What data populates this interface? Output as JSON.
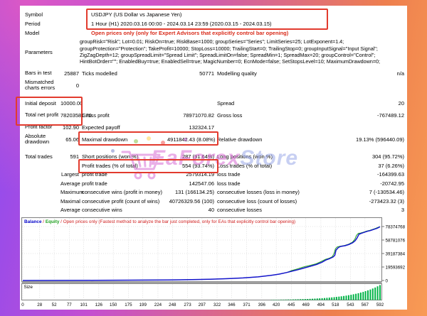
{
  "table": {
    "header_rows": [
      {
        "label": "Symbol",
        "value": "USDJPY (US Dollar vs Japanese Yen)",
        "type": "wide"
      },
      {
        "label": "Period",
        "value": "1 Hour (H1) 2020.03.16 00:00 - 2024.03.14 23:59 (2020.03.15 - 2024.03.15)",
        "type": "wide"
      },
      {
        "label": "Model",
        "value": "Open prices only (only for Expert Advisors that explicitly control bar opening)",
        "type": "wide",
        "cls": "model"
      },
      {
        "label": "Parameters",
        "type": "params",
        "lines": [
          "groupRisk=\"Risk\"; Lot=0.01; RiskOn=true; RiskBase=1000; groupSeries=\"Series\"; LimitSeries=25; LotExponent=1.4;",
          "groupProtection=\"Protection\"; TakeProfit=10000; StopLoss=10000; TrailingStart=0; TrailingStop=0; groupInputSignal=\"Input Signal\";",
          "ZigZagDepth=12; groupSpreadLimit=\"Spread Limit\"; SpreadLimitOn=false; SpreadMin=1; SpreadMax=20; groupControl=\"Control\";",
          "HintBotOrder=\"\"; EnabledBuy=true; EnabledSell=true; MagicNumber=0; EcnMode=false; SetStopsLevel=10; MaximumDrawdown=0;"
        ]
      }
    ],
    "stat_rows": [
      {
        "cells": [
          "Bars in test",
          "25887",
          "Ticks modelled",
          "50771",
          "Modelling quality",
          "n/a"
        ]
      },
      {
        "cells": [
          "Mismatched charts errors",
          "0",
          "",
          "",
          "",
          ""
        ],
        "cls": "tall"
      },
      {
        "cells": [
          "Initial deposit",
          "10000.00",
          "",
          "",
          "Spread",
          "20"
        ],
        "cls": "gap"
      },
      {
        "cells": [
          "Total net profit",
          "78203581.70",
          "Gross profit",
          "78971070.82",
          "Gross loss",
          "-767489.12"
        ],
        "cls": "tall"
      },
      {
        "cells": [
          "Profit factor",
          "102.90",
          "Expected payoff",
          "132324.17",
          "",
          ""
        ]
      },
      {
        "cells": [
          "Absolute drawdown",
          "65.06",
          "Maximal drawdown",
          "4911842.43 (8.08%)",
          "Relative drawdown",
          "19.13% (596440.09)"
        ],
        "cls": "tall"
      },
      {
        "cells": [
          "Total trades",
          "591",
          "Short positions (won %)",
          "287 (91.64%)",
          "Long positions (won %)",
          "304 (95.72%)"
        ],
        "cls": "gap2"
      },
      {
        "cells": [
          "",
          "",
          "Profit trades (% of total)",
          "554 (93.74%)",
          "Loss trades (% of total)",
          "37 (6.26%)"
        ]
      },
      {
        "cells": [
          "",
          "Largest",
          "profit trade",
          "2579314.19",
          "loss trade",
          "-164399.63"
        ]
      },
      {
        "cells": [
          "",
          "Average",
          "profit trade",
          "142547.06",
          "loss trade",
          "-20742.95"
        ]
      },
      {
        "cells": [
          "",
          "Maximum",
          "consecutive wins (profit in money)",
          "131 (166134.25)",
          "consecutive losses (loss in money)",
          "7 (-130534.46)"
        ]
      },
      {
        "cells": [
          "",
          "Maximal",
          "consecutive profit (count of wins)",
          "40726329.56 (100)",
          "consecutive loss (count of losses)",
          "-273423.32 (3)"
        ]
      },
      {
        "cells": [
          "",
          "Average",
          "consecutive wins",
          "40",
          "consecutive losses",
          "3"
        ]
      }
    ]
  },
  "watermark": {
    "icon": "shopping-cart-icon",
    "part1": "EaForex",
    "part2": "Store"
  },
  "colors": {
    "highlight_box": "#e23b2e",
    "model_text": "#d92b1a",
    "balance_line": "#1414cd",
    "equity_line": "#1fa01f",
    "chart_note": "#d02020",
    "size_bars": "#00b347",
    "frame_left": "#8b4bf2",
    "frame_right": "#f89b55",
    "watermark_pink": "#d86cd4"
  },
  "chart_data": [
    {
      "type": "line",
      "title": "Balance / Equity",
      "note": "Open prices only (Fastest method to analyze the bar just completed, only for EAs that explicitly control bar opening)",
      "xlim": [
        0,
        592
      ],
      "ylim": [
        0,
        78374768
      ],
      "x_ticks": [
        0,
        28,
        52,
        77,
        101,
        126,
        150,
        175,
        199,
        224,
        248,
        273,
        297,
        322,
        346,
        371,
        396,
        420,
        445,
        469,
        494,
        518,
        543,
        567,
        592
      ],
      "y_ticks": [
        0,
        19593692,
        39187384,
        58781076,
        78374768
      ],
      "grid": true,
      "legend_position": "top-left",
      "series": [
        {
          "name": "Equity",
          "color": "#1fa01f",
          "points": [
            [
              0,
              10000
            ],
            [
              60,
              90000
            ],
            [
              120,
              220000
            ],
            [
              180,
              480000
            ],
            [
              240,
              850000
            ],
            [
              280,
              1250000
            ],
            [
              310,
              1850000
            ],
            [
              340,
              2650000
            ],
            [
              365,
              3700000
            ],
            [
              390,
              5300000
            ],
            [
              410,
              7300000
            ],
            [
              425,
              9300000
            ],
            [
              437,
              11600000
            ],
            [
              446,
              14500000
            ],
            [
              455,
              16800000
            ],
            [
              465,
              19600000
            ],
            [
              476,
              22000000
            ],
            [
              486,
              24200000
            ],
            [
              494,
              27400000
            ],
            [
              501,
              30500000
            ],
            [
              508,
              32400000
            ],
            [
              513,
              34500000
            ],
            [
              516,
              40000000
            ],
            [
              518,
              46000000
            ],
            [
              521,
              48800000
            ],
            [
              526,
              49800000
            ],
            [
              533,
              50800000
            ],
            [
              540,
              52800000
            ],
            [
              546,
              55500000
            ],
            [
              550,
              59500000
            ],
            [
              553,
              65500000
            ],
            [
              556,
              68500000
            ],
            [
              560,
              69000000
            ],
            [
              565,
              70300000
            ],
            [
              570,
              71800000
            ],
            [
              575,
              72800000
            ],
            [
              580,
              74300000
            ],
            [
              585,
              75800000
            ],
            [
              589,
              77300000
            ],
            [
              592,
              78213582
            ]
          ]
        },
        {
          "name": "Balance",
          "color": "#1414cd",
          "points": [
            [
              0,
              10000
            ],
            [
              60,
              90000
            ],
            [
              120,
              220000
            ],
            [
              180,
              480000
            ],
            [
              240,
              850000
            ],
            [
              280,
              1250000
            ],
            [
              310,
              1850000
            ],
            [
              340,
              2650000
            ],
            [
              365,
              3700000
            ],
            [
              390,
              5300000
            ],
            [
              410,
              7300000
            ],
            [
              425,
              9300000
            ],
            [
              437,
              11600000
            ],
            [
              449,
              14100000
            ],
            [
              460,
              16600000
            ],
            [
              470,
              19100000
            ],
            [
              480,
              21600000
            ],
            [
              488,
              23600000
            ],
            [
              496,
              26600000
            ],
            [
              503,
              30000000
            ],
            [
              509,
              32000000
            ],
            [
              514,
              34000000
            ],
            [
              517,
              36500000
            ],
            [
              519,
              44000000
            ],
            [
              523,
              48000000
            ],
            [
              527,
              49500000
            ],
            [
              534,
              50500000
            ],
            [
              541,
              52500000
            ],
            [
              547,
              55000000
            ],
            [
              551,
              58000000
            ],
            [
              554,
              62000000
            ],
            [
              557,
              67000000
            ],
            [
              561,
              68500000
            ],
            [
              566,
              70000000
            ],
            [
              571,
              71500000
            ],
            [
              576,
              72500000
            ],
            [
              581,
              74000000
            ],
            [
              586,
              75500000
            ],
            [
              590,
              77000000
            ],
            [
              592,
              78213582
            ]
          ]
        }
      ]
    },
    {
      "type": "bar",
      "title": "Size",
      "x_from": 412,
      "x_to": 592,
      "bar_step": 4,
      "height_min": 0.02,
      "height_max": 1.0,
      "growth": "exponential"
    }
  ]
}
